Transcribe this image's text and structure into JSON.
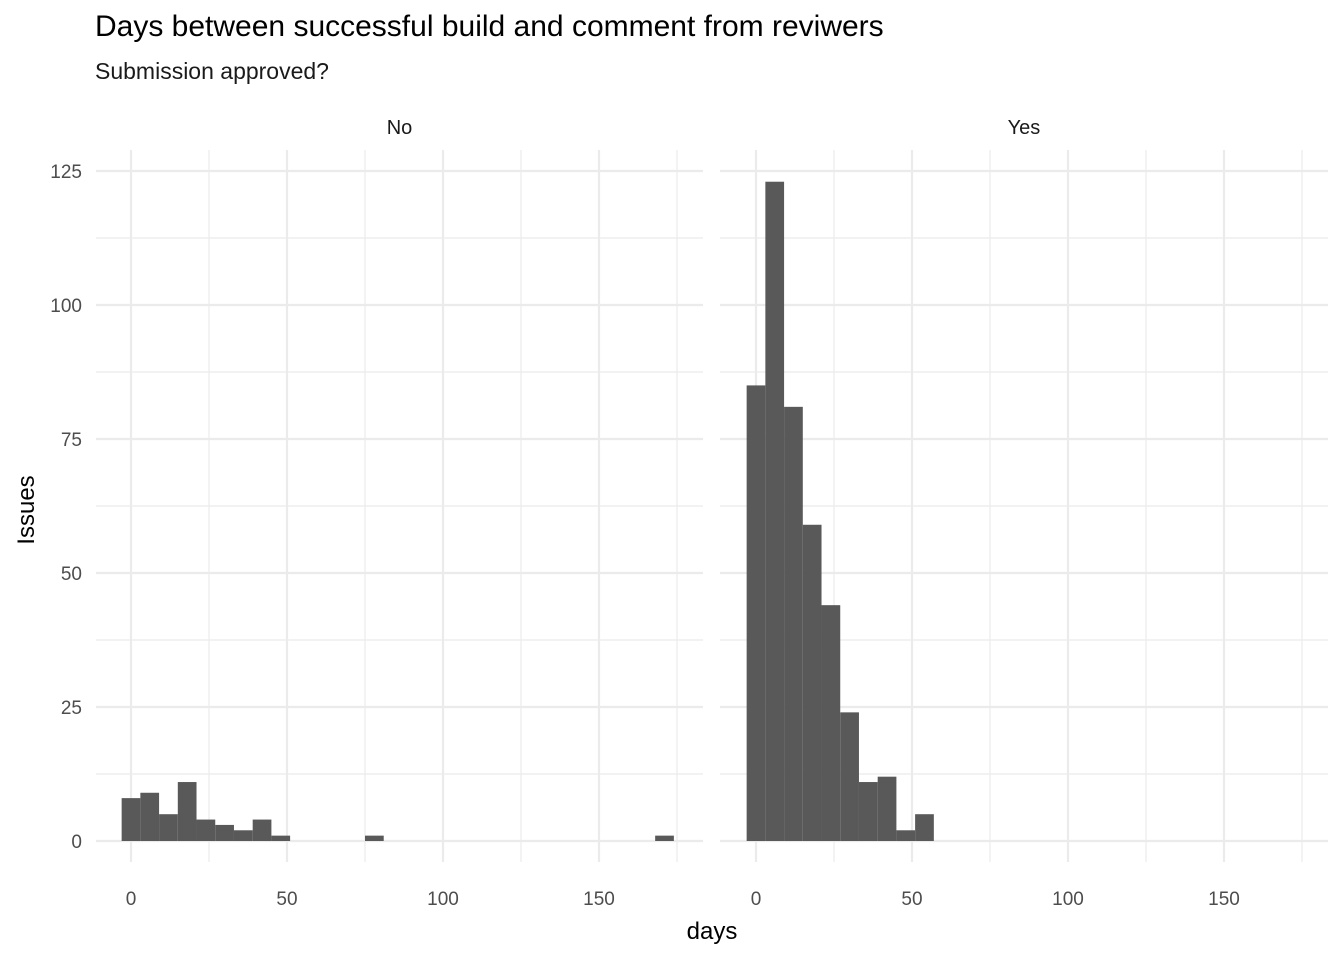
{
  "chart_data": {
    "type": "bar",
    "title": "Days between successful build and comment from reviwers",
    "subtitle": "Submission approved?",
    "xlabel": "days",
    "ylabel": "Issues",
    "x_ticks": [
      0,
      50,
      100,
      150
    ],
    "y_ticks": [
      0,
      25,
      50,
      75,
      100,
      125
    ],
    "xlim": [
      -6,
      175
    ],
    "ylim": [
      0,
      126
    ],
    "bin_width": 6,
    "grid": true,
    "bar_color": "#595959",
    "facets": [
      {
        "label": "No",
        "bins": [
          {
            "x": 0,
            "count": 8
          },
          {
            "x": 6,
            "count": 9
          },
          {
            "x": 12,
            "count": 5
          },
          {
            "x": 18,
            "count": 11
          },
          {
            "x": 24,
            "count": 4
          },
          {
            "x": 30,
            "count": 3
          },
          {
            "x": 36,
            "count": 2
          },
          {
            "x": 42,
            "count": 4
          },
          {
            "x": 48,
            "count": 1
          },
          {
            "x": 78,
            "count": 1
          },
          {
            "x": 171,
            "count": 1
          }
        ]
      },
      {
        "label": "Yes",
        "bins": [
          {
            "x": 0,
            "count": 85
          },
          {
            "x": 6,
            "count": 123
          },
          {
            "x": 12,
            "count": 81
          },
          {
            "x": 18,
            "count": 59
          },
          {
            "x": 24,
            "count": 44
          },
          {
            "x": 30,
            "count": 24
          },
          {
            "x": 36,
            "count": 11
          },
          {
            "x": 42,
            "count": 12
          },
          {
            "x": 48,
            "count": 2
          },
          {
            "x": 54,
            "count": 5
          }
        ]
      }
    ]
  }
}
